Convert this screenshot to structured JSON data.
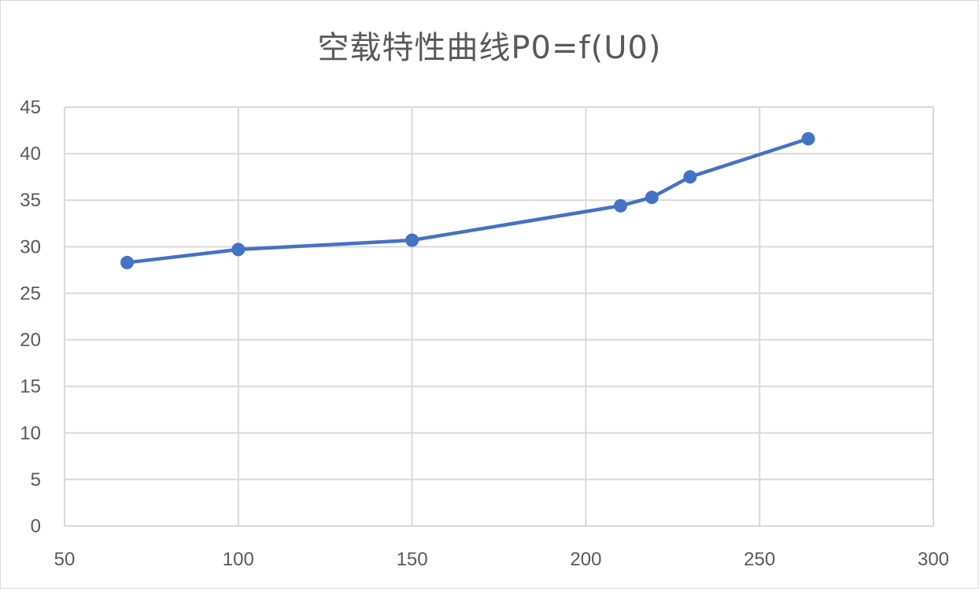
{
  "chart_data": {
    "type": "scatter",
    "title": "空载特性曲线P0=f(U0)",
    "xlabel": "",
    "ylabel": "",
    "xlim": [
      50,
      300
    ],
    "ylim": [
      0,
      45
    ],
    "x_ticks": [
      50,
      100,
      150,
      200,
      250,
      300
    ],
    "y_ticks": [
      0,
      5,
      10,
      15,
      20,
      25,
      30,
      35,
      40,
      45
    ],
    "grid": true,
    "legend": "none",
    "series": [
      {
        "color": "#4472c4",
        "x": [
          68,
          100,
          150,
          210,
          219,
          230,
          264
        ],
        "y": [
          28.3,
          29.7,
          30.7,
          34.4,
          35.3,
          37.5,
          41.6
        ]
      }
    ]
  }
}
